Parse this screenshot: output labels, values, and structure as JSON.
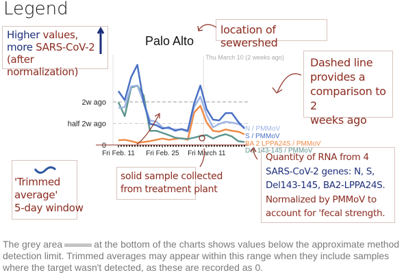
{
  "legend_title": "Legend",
  "annotations": {
    "higher_values": {
      "line1a": "Higher",
      "line1b": "values,",
      "line2a": "more",
      "line2b": "SARS-CoV-2",
      "line3": "(after normalization)"
    },
    "location": "location of sewershed",
    "dashed": [
      "Dashed line",
      "provides a",
      "comparison to 2",
      "weeks ago"
    ],
    "quantity": [
      "Quantity of RNA from 4",
      "SARS-CoV-2 genes: N, S,",
      "Del143-145, BA2-LPPA24S.",
      "Normalized by PMMoV to",
      "account for 'fecal strength."
    ],
    "trimmed": [
      "'Trimmed",
      "average'",
      "5-day window"
    ],
    "solid": [
      "solid sample collected",
      "from treatment plant"
    ]
  },
  "bottom_note": {
    "before": "The grey area",
    "after": "at the bottom of the charts shows values below the approximate method detection limit. Trimmed averages may appear within this range when they include samples where the target wasn't detected, as these are recorded as 0."
  },
  "colors": {
    "annotation": "#8b2b1f",
    "annotation_blue": "#1e2f7a",
    "N": "#9db4e6",
    "S": "#4a70c4",
    "BA2": "#ee8a45",
    "Del": "#5f9690"
  },
  "chart_data": {
    "type": "line",
    "title": "Palo Alto",
    "y_ticks": [
      {
        "value": 0,
        "label": "0"
      },
      {
        "value": 0.5,
        "label": "half 2w ago"
      },
      {
        "value": 1,
        "label": "2w ago"
      }
    ],
    "x_ticks": [
      "Fri Feb. 11",
      "Fri Feb. 25",
      "Fri March 11"
    ],
    "reference_marker": {
      "date": "Mar 10",
      "label": "Thu March 10 (2 weeks ago)"
    },
    "dashed_lines": [
      1,
      0.5
    ],
    "x": [
      "Feb 11",
      "Feb 13",
      "Feb 15",
      "Feb 17",
      "Feb 19",
      "Feb 21",
      "Feb 23",
      "Feb 25",
      "Feb 27",
      "Mar 1",
      "Mar 3",
      "Mar 5",
      "Mar 7",
      "Mar 9",
      "Mar 11",
      "Mar 13",
      "Mar 15",
      "Mar 17",
      "Mar 19",
      "Mar 21",
      "Mar 23"
    ],
    "series": [
      {
        "name": "N / PMMoV",
        "key": "N",
        "values": [
          0.86,
          0.88,
          1.36,
          1.38,
          0.99,
          0.57,
          0.54,
          0.41,
          0.38,
          0.36,
          0.36,
          0.31,
          0.88,
          1.12,
          0.7,
          0.41,
          0.49,
          0.54,
          0.52,
          0.49,
          0.41
        ]
      },
      {
        "name": "S / PMMoV",
        "key": "S",
        "values": [
          1.25,
          1.04,
          1.57,
          1.86,
          0.99,
          0.49,
          0.46,
          0.38,
          0.41,
          0.33,
          0.37,
          0.33,
          0.96,
          1.38,
          0.83,
          0.59,
          0.57,
          0.74,
          0.74,
          0.54,
          0.38
        ]
      },
      {
        "name": "BA 2 LPPA24S / PMMoV",
        "key": "BA2",
        "values": [
          0.11,
          0.12,
          0.09,
          0.05,
          0.07,
          0.09,
          0.12,
          0.15,
          0.12,
          0.14,
          0.16,
          0.12,
          0.75,
          0.91,
          0.52,
          0.33,
          0.31,
          0.36,
          0.33,
          0.31,
          0.25
        ]
      },
      {
        "name": "Del 143-145 / PMMoV",
        "key": "Del",
        "values": [
          0.99,
          0.67,
          1.33,
          1.38,
          1.15,
          0.33,
          0.33,
          0.28,
          0.23,
          0.17,
          0.15,
          0.14,
          0.17,
          0.21,
          0.23,
          0.15,
          0.21,
          0.25,
          0.2,
          0.09,
          0.07
        ]
      }
    ]
  }
}
